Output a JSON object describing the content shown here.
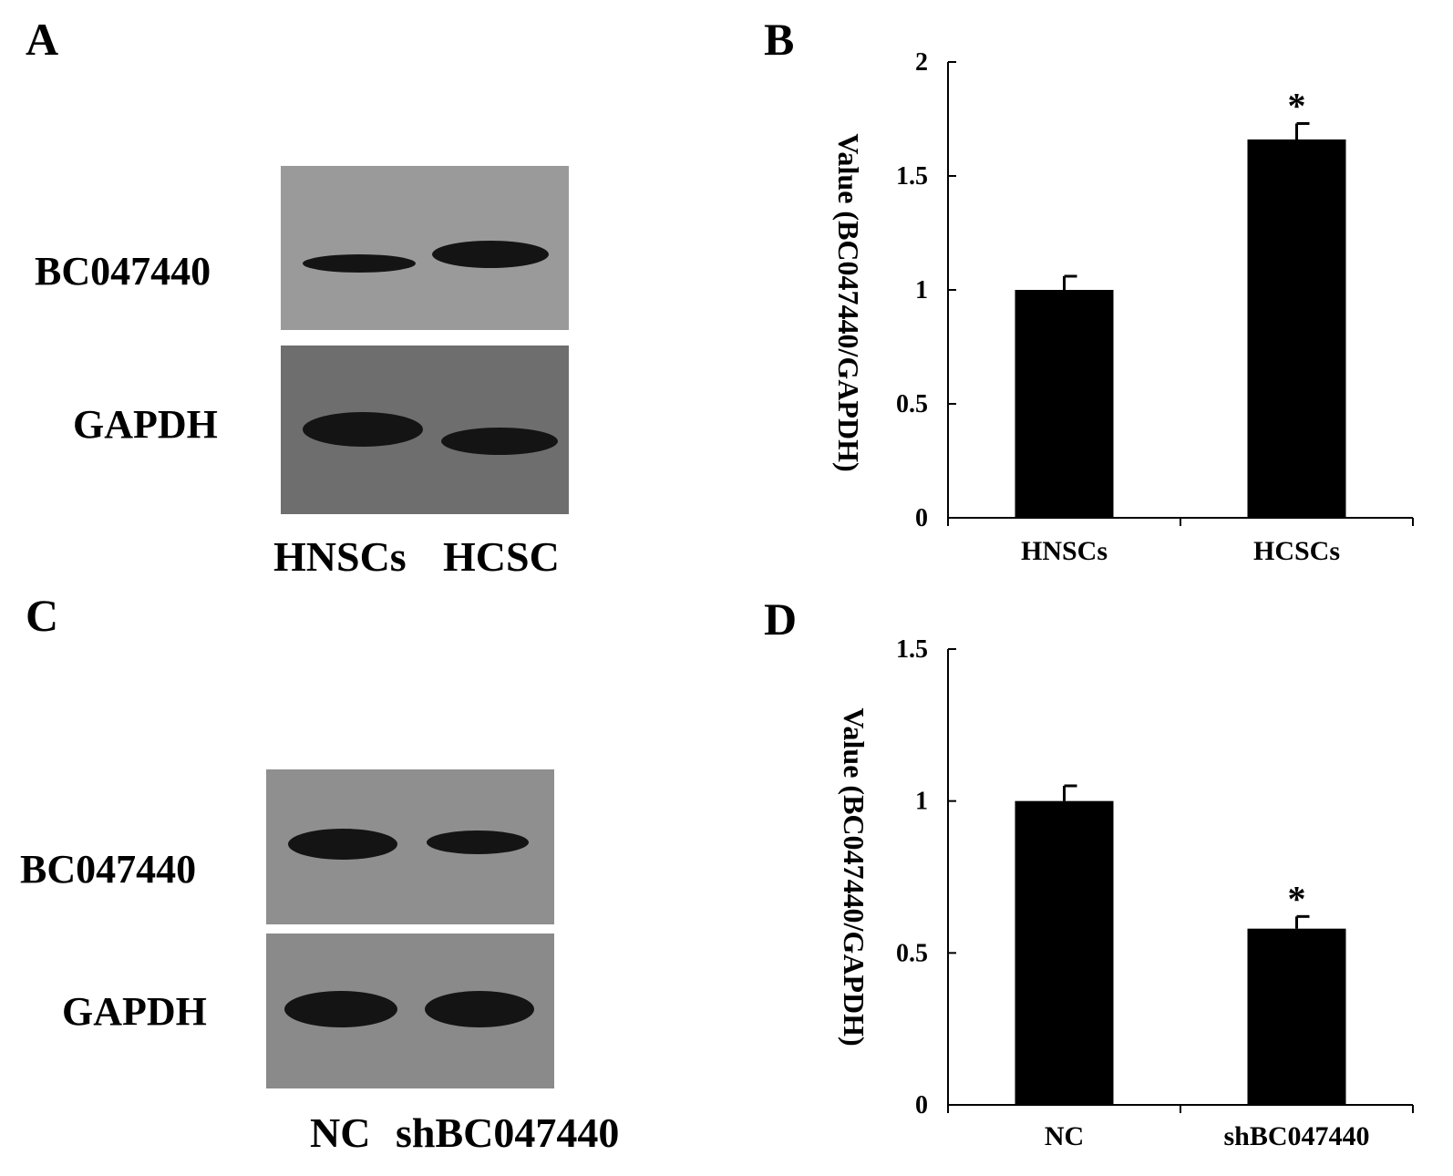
{
  "panels": {
    "A": {
      "letter": "A",
      "blot_labels": {
        "top": "BC047440",
        "bottom": "GAPDH"
      },
      "lane_labels": [
        "HNSCs",
        "HCSC"
      ],
      "membrane_colors": {
        "top": "#9a9a9a",
        "bottom": "#6e6e6e"
      },
      "band_color": "#141414"
    },
    "B": {
      "letter": "B"
    },
    "C": {
      "letter": "C",
      "blot_labels": {
        "top": "BC047440",
        "bottom": "GAPDH"
      },
      "lane_labels": [
        "NC",
        "shBC047440"
      ],
      "membrane_colors": {
        "top": "#8f8f8f",
        "bottom": "#8a8a8a"
      },
      "band_color": "#141414"
    },
    "D": {
      "letter": "D"
    }
  },
  "chart_data": [
    {
      "panel": "B",
      "type": "bar",
      "categories": [
        "HNSCs",
        "HCSCs"
      ],
      "values": [
        1.0,
        1.66
      ],
      "error": [
        0.06,
        0.07
      ],
      "annotations": [
        "",
        "*"
      ],
      "ylabel": "Value (BC047440/GAPDH)",
      "ylim": [
        0,
        2
      ],
      "yticks": [
        0,
        0.5,
        1,
        1.5,
        2
      ],
      "ytick_labels": [
        "0",
        "0.5",
        "1",
        "1.5",
        "2"
      ],
      "grid": false,
      "bar_color": "#000000"
    },
    {
      "panel": "D",
      "type": "bar",
      "categories": [
        "NC",
        "shBC047440"
      ],
      "values": [
        1.0,
        0.58
      ],
      "error": [
        0.05,
        0.04
      ],
      "annotations": [
        "",
        "*"
      ],
      "ylabel": "Value (BC047440/GAPDH)",
      "ylim": [
        0,
        1.5
      ],
      "yticks": [
        0,
        0.5,
        1,
        1.5
      ],
      "ytick_labels": [
        "0",
        "0.5",
        "1",
        "1.5"
      ],
      "grid": false,
      "bar_color": "#000000"
    }
  ]
}
